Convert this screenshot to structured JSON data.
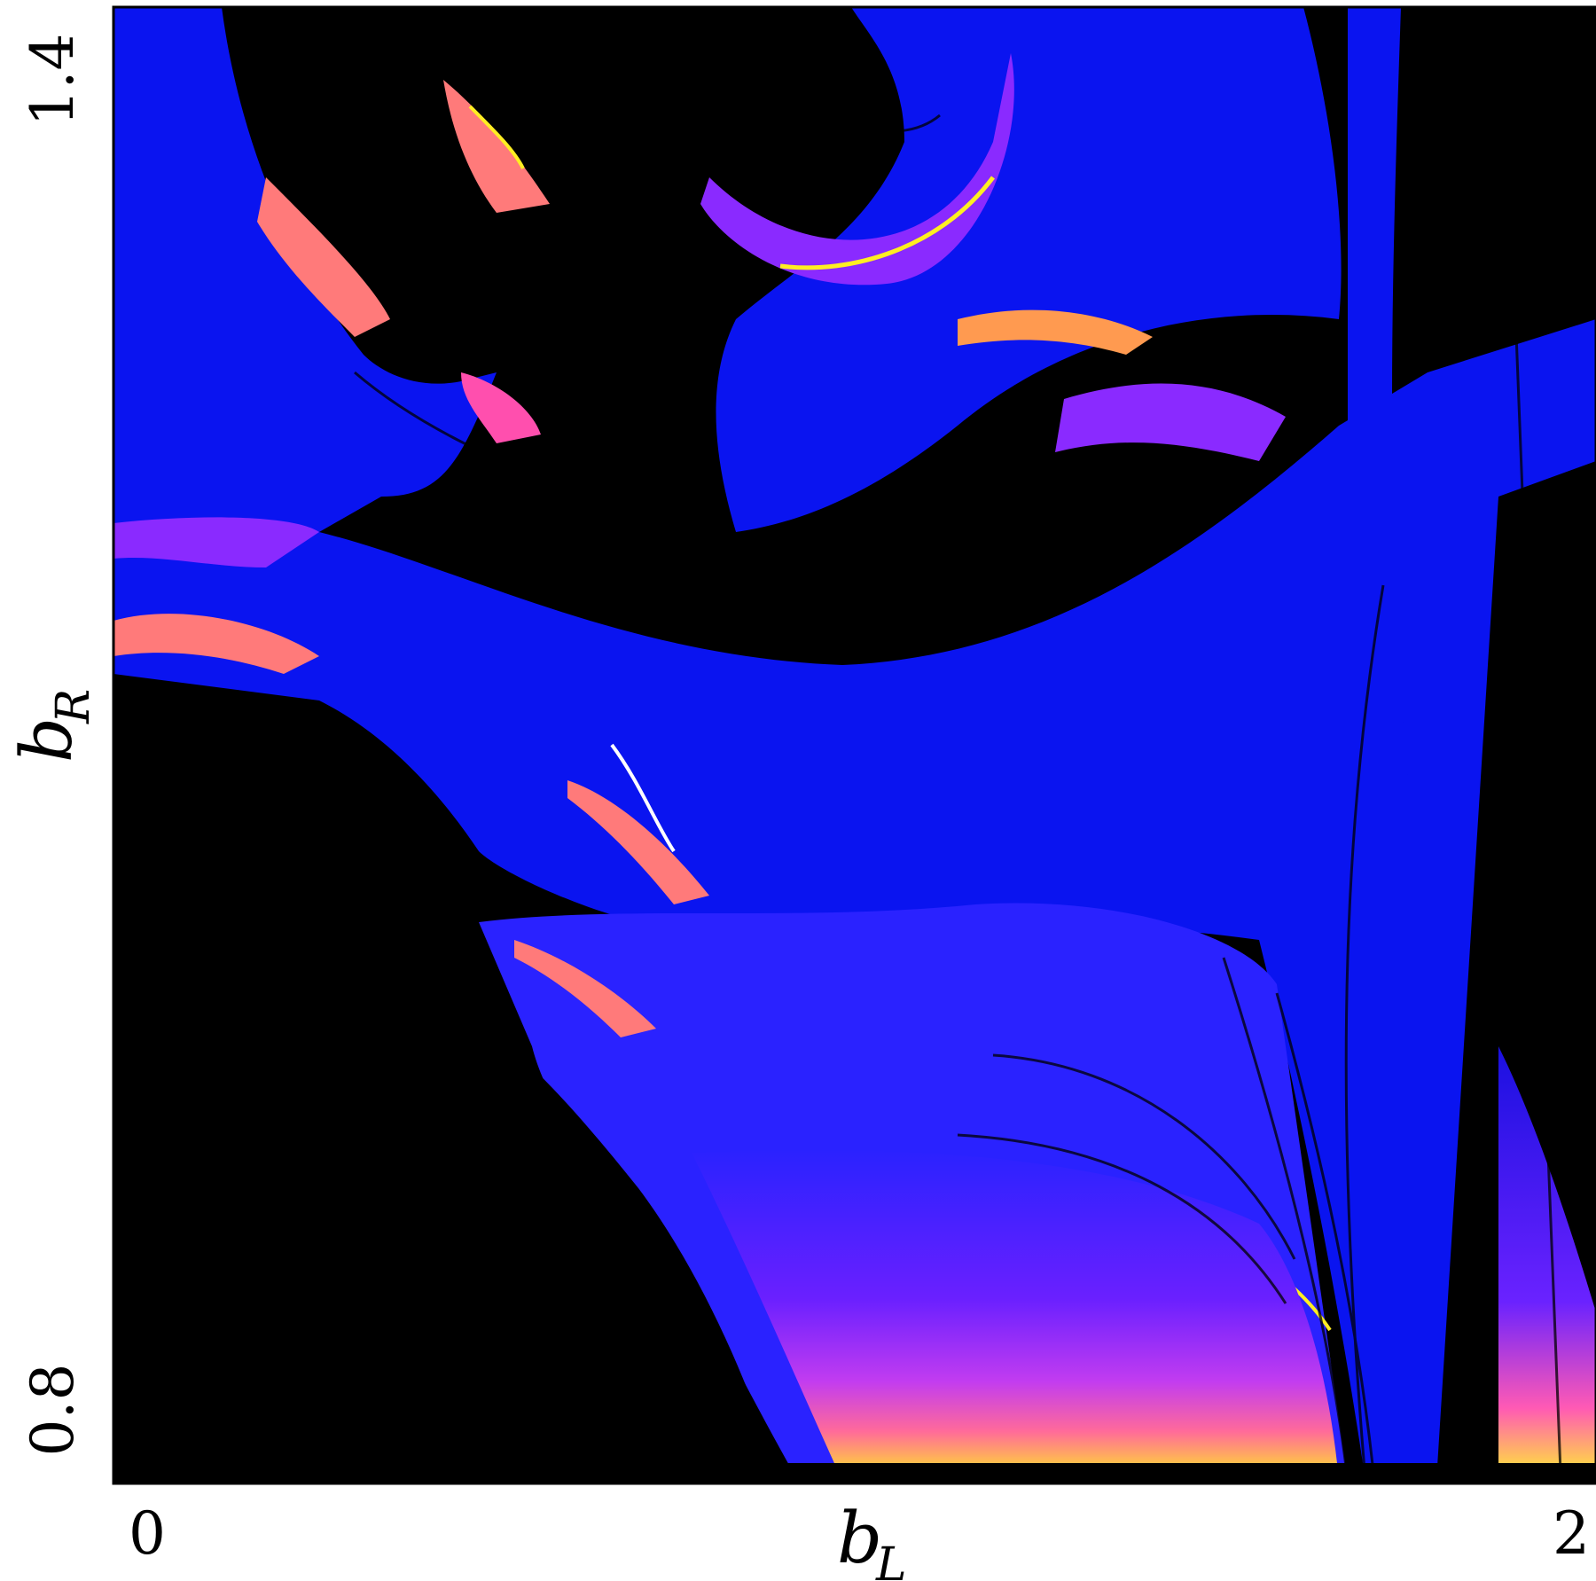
{
  "chart_data": {
    "type": "heatmap",
    "title": "",
    "xlabel": {
      "base": "b",
      "subscript": "L"
    },
    "ylabel": {
      "base": "b",
      "subscript": "R"
    },
    "xlim": [
      0,
      2
    ],
    "ylim": [
      0.8,
      1.4
    ],
    "x_ticks": [
      "0",
      "2"
    ],
    "y_ticks": [
      "0.8",
      "1.4"
    ],
    "grid": false,
    "legend": "none",
    "colors": {
      "background": "#000000",
      "blue": "#0a14f0",
      "indigo": "#2a22ff",
      "violet": "#8a2aff",
      "magenta": "#ff4fae",
      "salmon": "#ff7a7a",
      "orange": "#ff9a50",
      "yellow": "#ffee22",
      "white": "#ffffff"
    }
  }
}
